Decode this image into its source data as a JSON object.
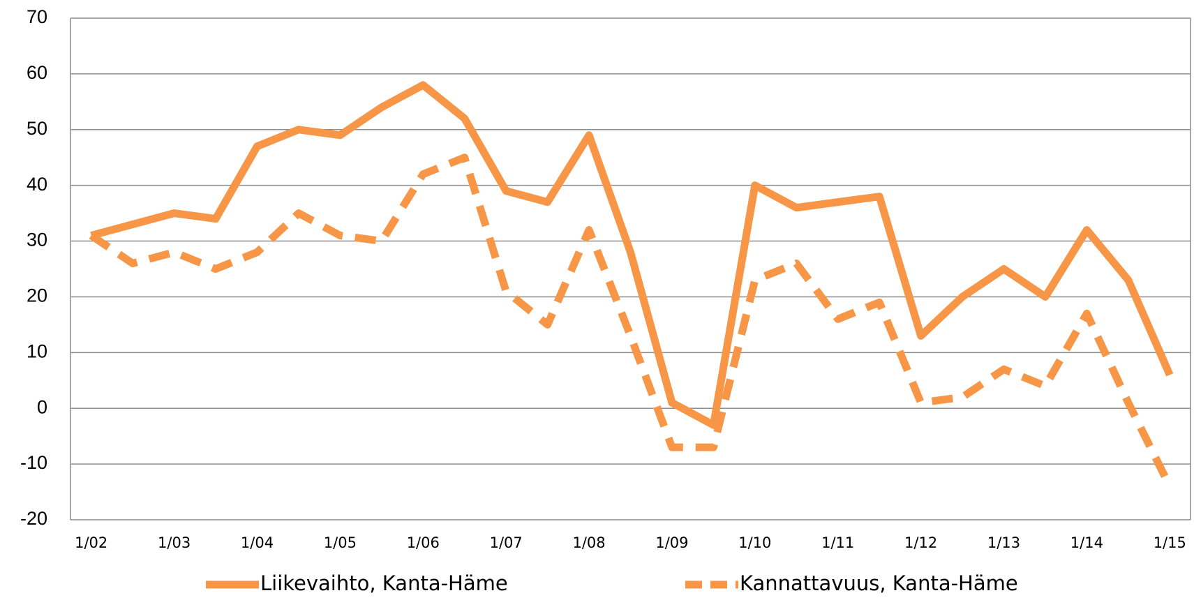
{
  "chart_data": {
    "type": "line",
    "categories": [
      "1/02",
      null,
      "1/03",
      null,
      "1/04",
      null,
      "1/05",
      null,
      "1/06",
      null,
      "1/07",
      null,
      "1/08",
      null,
      "1/09",
      null,
      "1/10",
      null,
      "1/11",
      null,
      "1/12",
      null,
      "1/13",
      null,
      "1/14",
      null,
      "1/15"
    ],
    "series": [
      {
        "name": "Liikevaihto, Kanta-Häme",
        "color": "#f79646",
        "dash": false,
        "values": [
          31,
          33,
          35,
          34,
          47,
          50,
          49,
          54,
          58,
          52,
          39,
          37,
          49,
          28,
          1,
          -3,
          40,
          36,
          37,
          38,
          13,
          20,
          25,
          20,
          32,
          23,
          6
        ]
      },
      {
        "name": "Kannattavuus, Kanta-Häme",
        "color": "#f79646",
        "dash": true,
        "values": [
          31,
          26,
          28,
          25,
          28,
          35,
          31,
          30,
          42,
          45,
          21,
          15,
          32,
          13,
          -7,
          -7,
          23,
          26,
          16,
          19,
          1,
          2,
          7,
          4,
          17,
          1,
          -14
        ]
      }
    ],
    "ylim": [
      -20,
      70
    ],
    "yticks": [
      -20,
      -10,
      0,
      10,
      20,
      30,
      40,
      50,
      60,
      70
    ],
    "grid": true,
    "legend": "bottom"
  }
}
